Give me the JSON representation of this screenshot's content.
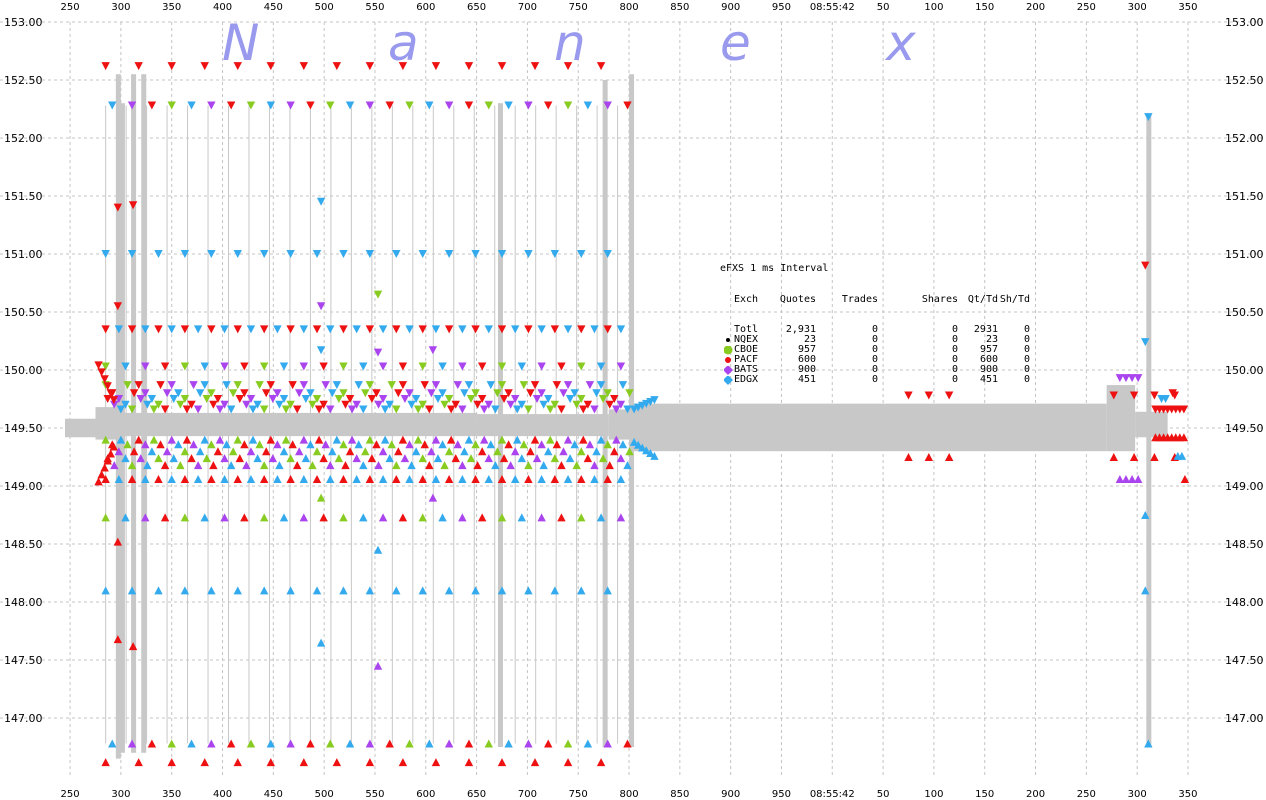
{
  "chart_data": {
    "type": "scatter",
    "title": "",
    "watermark": [
      "N",
      "a",
      "n",
      "e",
      "x"
    ],
    "time_label": "08:55:42",
    "x_tick_labels": [
      "250",
      "300",
      "350",
      "400",
      "450",
      "500",
      "550",
      "600",
      "650",
      "700",
      "750",
      "800",
      "850",
      "900",
      "950",
      "08:55:42",
      "50",
      "100",
      "150",
      "200",
      "250",
      "300",
      "350"
    ],
    "y_ticks": [
      "147.00",
      "147.50",
      "148.00",
      "148.50",
      "149.00",
      "149.50",
      "150.00",
      "150.50",
      "151.00",
      "151.50",
      "152.00",
      "152.50",
      "153.00"
    ],
    "ylim": [
      146.55,
      153.0
    ],
    "grid": true,
    "nbbo_band": {
      "segments": [
        {
          "t0": 245,
          "t1": 275,
          "bid": 149.42,
          "ask": 149.58
        },
        {
          "t0": 275,
          "t1": 300,
          "bid": 149.4,
          "ask": 149.68
        },
        {
          "t0": 300,
          "t1": 650,
          "bid": 149.43,
          "ask": 149.63
        },
        {
          "t0": 650,
          "t1": 780,
          "bid": 149.43,
          "ask": 149.62
        },
        {
          "t0": 780,
          "t1": 800,
          "bid": 149.4,
          "ask": 149.66
        },
        {
          "t0": 800,
          "t1": 1270,
          "bid": 149.3,
          "ask": 149.71
        },
        {
          "t0": 1270,
          "t1": 1298,
          "bid": 149.3,
          "ask": 149.87
        },
        {
          "t0": 1298,
          "t1": 1330,
          "bid": 149.42,
          "ask": 149.64
        }
      ],
      "spikes": [
        {
          "t": 297,
          "low": 146.65,
          "high": 152.55
        },
        {
          "t": 301,
          "low": 146.7,
          "high": 152.3
        },
        {
          "t": 312,
          "low": 146.7,
          "high": 152.55
        },
        {
          "t": 322,
          "low": 146.7,
          "high": 152.55
        },
        {
          "t": 673,
          "low": 146.75,
          "high": 152.3
        },
        {
          "t": 776,
          "low": 146.75,
          "high": 152.5
        },
        {
          "t": 802,
          "low": 146.75,
          "high": 152.55
        },
        {
          "t": 1311,
          "low": 146.75,
          "high": 152.2
        }
      ]
    },
    "price_levels": {
      "ask": [
        152.62,
        152.28,
        151.0,
        150.35,
        150.03,
        149.87,
        149.8,
        149.75,
        149.7,
        149.66
      ],
      "bid": [
        149.4,
        149.36,
        149.3,
        149.24,
        149.18,
        149.06,
        148.73,
        148.1,
        146.78,
        146.62
      ]
    },
    "cluster": {
      "t0": 285,
      "t1": 800,
      "step": 6.5
    },
    "far_quotes": [
      {
        "t": 297,
        "p": 151.4,
        "side": "ask",
        "exch": "PACF"
      },
      {
        "t": 297,
        "p": 150.55,
        "side": "ask",
        "exch": "PACF"
      },
      {
        "t": 312,
        "p": 151.42,
        "side": "ask",
        "exch": "PACF"
      },
      {
        "t": 297,
        "p": 147.68,
        "side": "bid",
        "exch": "PACF"
      },
      {
        "t": 297,
        "p": 148.52,
        "side": "bid",
        "exch": "PACF"
      },
      {
        "t": 312,
        "p": 147.62,
        "side": "bid",
        "exch": "PACF"
      },
      {
        "t": 497,
        "p": 151.45,
        "side": "ask",
        "exch": "EDGX"
      },
      {
        "t": 497,
        "p": 150.55,
        "side": "ask",
        "exch": "BATS"
      },
      {
        "t": 497,
        "p": 150.17,
        "side": "ask",
        "exch": "EDGX"
      },
      {
        "t": 553,
        "p": 150.65,
        "side": "ask",
        "exch": "CBOE"
      },
      {
        "t": 553,
        "p": 150.15,
        "side": "ask",
        "exch": "BATS"
      },
      {
        "t": 497,
        "p": 147.65,
        "side": "bid",
        "exch": "EDGX"
      },
      {
        "t": 497,
        "p": 148.9,
        "side": "bid",
        "exch": "CBOE"
      },
      {
        "t": 553,
        "p": 148.45,
        "side": "bid",
        "exch": "EDGX"
      },
      {
        "t": 553,
        "p": 147.45,
        "side": "bid",
        "exch": "BATS"
      },
      {
        "t": 607,
        "p": 150.17,
        "side": "ask",
        "exch": "BATS"
      },
      {
        "t": 607,
        "p": 148.9,
        "side": "bid",
        "exch": "BATS"
      }
    ],
    "mid_quotes": [
      {
        "t": 1075,
        "ask": 149.78,
        "bid": 149.25
      },
      {
        "t": 1095,
        "ask": 149.78,
        "bid": 149.25
      },
      {
        "t": 1115,
        "ask": 149.78,
        "bid": 149.25
      },
      {
        "t": 1277,
        "ask": 149.78,
        "bid": 149.25
      },
      {
        "t": 1297,
        "ask": 149.78,
        "bid": 149.25
      },
      {
        "t": 1317,
        "ask": 149.78,
        "bid": 149.25
      },
      {
        "t": 1337,
        "ask": 149.78,
        "bid": 149.25
      }
    ],
    "right_tail": [
      {
        "t": 1283,
        "p": 149.93,
        "side": "ask",
        "exch": "BATS"
      },
      {
        "t": 1289,
        "p": 149.93,
        "side": "ask",
        "exch": "BATS"
      },
      {
        "t": 1295,
        "p": 149.93,
        "side": "ask",
        "exch": "BATS"
      },
      {
        "t": 1301,
        "p": 149.93,
        "side": "ask",
        "exch": "BATS"
      },
      {
        "t": 1283,
        "p": 149.06,
        "side": "bid",
        "exch": "BATS"
      },
      {
        "t": 1289,
        "p": 149.06,
        "side": "bid",
        "exch": "BATS"
      },
      {
        "t": 1295,
        "p": 149.06,
        "side": "bid",
        "exch": "BATS"
      },
      {
        "t": 1301,
        "p": 149.06,
        "side": "bid",
        "exch": "BATS"
      },
      {
        "t": 1308,
        "p": 150.9,
        "side": "ask",
        "exch": "PACF"
      },
      {
        "t": 1308,
        "p": 150.24,
        "side": "ask",
        "exch": "EDGX"
      },
      {
        "t": 1308,
        "p": 148.75,
        "side": "bid",
        "exch": "EDGX"
      },
      {
        "t": 1308,
        "p": 148.1,
        "side": "bid",
        "exch": "EDGX"
      },
      {
        "t": 1311,
        "p": 152.18,
        "side": "ask",
        "exch": "EDGX"
      },
      {
        "t": 1311,
        "p": 146.78,
        "side": "bid",
        "exch": "EDGX"
      },
      {
        "t": 1324,
        "p": 149.75,
        "side": "ask",
        "exch": "EDGX"
      },
      {
        "t": 1328,
        "p": 149.75,
        "side": "ask",
        "exch": "EDGX"
      },
      {
        "t": 1335,
        "p": 149.8,
        "side": "ask",
        "exch": "PACF"
      },
      {
        "t": 1340,
        "p": 149.26,
        "side": "bid",
        "exch": "EDGX"
      },
      {
        "t": 1344,
        "p": 149.26,
        "side": "bid",
        "exch": "EDGX"
      },
      {
        "t": 1347,
        "p": 149.06,
        "side": "bid",
        "exch": "PACF"
      }
    ]
  },
  "colors": {
    "band": "#c8c8c8",
    "grid": "#c4c4c4",
    "NQEX": "#000000",
    "CBOE": "#88cc22",
    "PACF": "#ee1111",
    "BATS": "#aa44ee",
    "EDGX": "#33aaee"
  },
  "legend": {
    "title": "eFXS 1 ms Interval",
    "headers": [
      "Exch",
      "Quotes",
      "Trades",
      "Shares",
      "Qt/Td",
      "Sh/Td"
    ],
    "rows": [
      {
        "exch": "Totl",
        "quotes": "2,931",
        "trades": "0",
        "shares": "0",
        "qt_td": "2931",
        "sh_td": "0",
        "symbol": "none"
      },
      {
        "exch": "NQEX",
        "quotes": "23",
        "trades": "0",
        "shares": "0",
        "qt_td": "23",
        "sh_td": "0",
        "symbol": "dot"
      },
      {
        "exch": "CBOE",
        "quotes": "957",
        "trades": "0",
        "shares": "0",
        "qt_td": "957",
        "sh_td": "0",
        "symbol": "circle"
      },
      {
        "exch": "PACF",
        "quotes": "600",
        "trades": "0",
        "shares": "0",
        "qt_td": "600",
        "sh_td": "0",
        "symbol": "dot"
      },
      {
        "exch": "BATS",
        "quotes": "900",
        "trades": "0",
        "shares": "0",
        "qt_td": "900",
        "sh_td": "0",
        "symbol": "diamond"
      },
      {
        "exch": "EDGX",
        "quotes": "451",
        "trades": "0",
        "shares": "0",
        "qt_td": "451",
        "sh_td": "0",
        "symbol": "diamond"
      }
    ]
  }
}
